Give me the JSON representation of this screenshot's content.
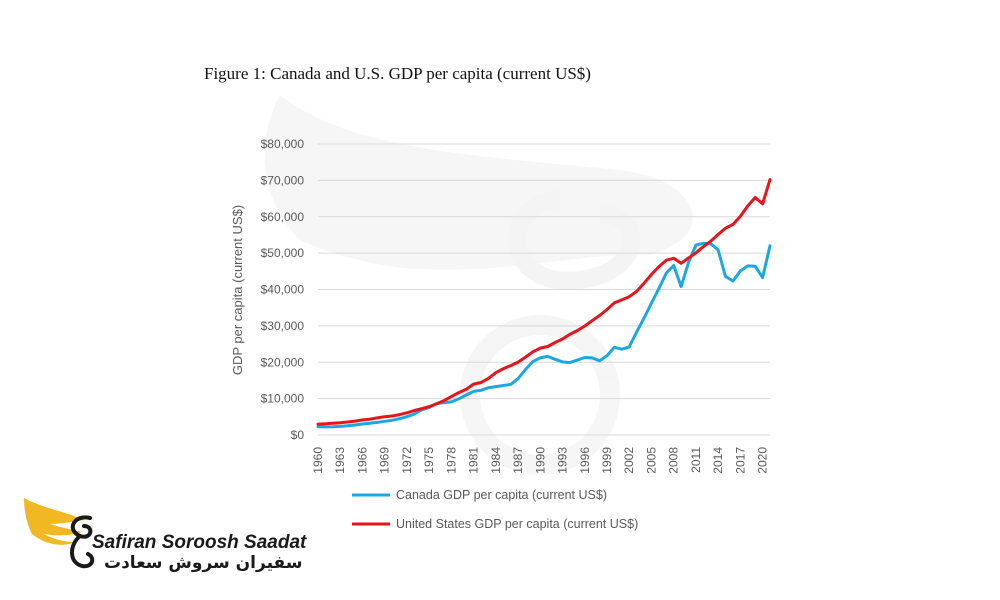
{
  "chart_data": {
    "type": "line",
    "title": "Figure 1: Canada and U.S. GDP per capita (current US$)",
    "ylabel": "GDP per capita (current US$)",
    "xlabel": "",
    "ylim": [
      0,
      80000
    ],
    "yticks": [
      0,
      10000,
      20000,
      30000,
      40000,
      50000,
      60000,
      70000,
      80000
    ],
    "ytick_labels": [
      "$0",
      "$10,000",
      "$20,000",
      "$30,000",
      "$40,000",
      "$50,000",
      "$60,000",
      "$70,000",
      "$80,000"
    ],
    "grid": true,
    "legend": "bottom",
    "x": [
      1960,
      1961,
      1962,
      1963,
      1964,
      1965,
      1966,
      1967,
      1968,
      1969,
      1970,
      1971,
      1972,
      1973,
      1974,
      1975,
      1976,
      1977,
      1978,
      1979,
      1980,
      1981,
      1982,
      1983,
      1984,
      1985,
      1986,
      1987,
      1988,
      1989,
      1990,
      1991,
      1992,
      1993,
      1994,
      1995,
      1996,
      1997,
      1998,
      1999,
      2000,
      2001,
      2002,
      2003,
      2004,
      2005,
      2006,
      2007,
      2008,
      2009,
      2010,
      2011,
      2012,
      2013,
      2014,
      2015,
      2016,
      2017,
      2018,
      2019,
      2020,
      2021
    ],
    "xtick_labels": [
      "1960",
      "1963",
      "1966",
      "1969",
      "1972",
      "1975",
      "1978",
      "1981",
      "1984",
      "1987",
      "1990",
      "1993",
      "1996",
      "1999",
      "2002",
      "2005",
      "2008",
      "2011",
      "2014",
      "2017",
      "2020"
    ],
    "series": [
      {
        "name": "Canada GDP per capita (current US$)",
        "color": "#1BA8E0",
        "values": [
          2250,
          2220,
          2260,
          2370,
          2540,
          2760,
          3030,
          3210,
          3460,
          3760,
          4050,
          4470,
          5040,
          5760,
          6940,
          7530,
          8630,
          8920,
          9110,
          9960,
          11000,
          12000,
          12300,
          13000,
          13300,
          13600,
          13900,
          15500,
          18000,
          20200,
          21200,
          21600,
          20800,
          20100,
          19900,
          20600,
          21300,
          21200,
          20400,
          21800,
          24100,
          23600,
          24200,
          28300,
          32100,
          36200,
          40300,
          44500,
          46600,
          40800,
          47400,
          52200,
          52700,
          52600,
          50900,
          43600,
          42300,
          45100,
          46500,
          46400,
          43300,
          52000
        ]
      },
      {
        "name": "United States GDP per capita (current US$)",
        "color": "#E8141B",
        "values": [
          3000,
          3070,
          3240,
          3370,
          3570,
          3830,
          4150,
          4330,
          4700,
          5030,
          5230,
          5610,
          6090,
          6730,
          7240,
          7800,
          8590,
          9450,
          10560,
          11670,
          12550,
          13980,
          14430,
          15560,
          17120,
          18240,
          19070,
          20040,
          21420,
          22860,
          23890,
          24340,
          25420,
          26390,
          27690,
          28690,
          29970,
          31460,
          32850,
          34510,
          36330,
          37130,
          38020,
          39490,
          41720,
          44110,
          46300,
          48050,
          48570,
          47190,
          48650,
          50070,
          51780,
          53290,
          55120,
          56850,
          57900,
          60110,
          62990,
          65280,
          63530,
          70250
        ]
      }
    ]
  },
  "logo": {
    "latin": "Safiran Soroosh Saadat",
    "farsi": "سفیران سروش سعادت",
    "primary_color": "#F2B824",
    "dark_color": "#1a1a1a"
  }
}
